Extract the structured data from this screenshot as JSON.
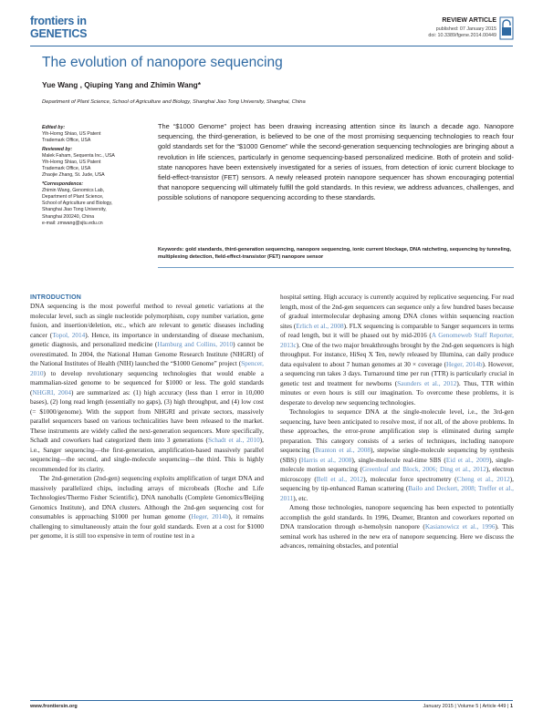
{
  "header": {
    "logo_line1": "frontiers in",
    "logo_line2": "GENETICS",
    "article_type": "REVIEW ARTICLE",
    "published": "published: 07 January 2015",
    "doi": "doi: 10.3389/fgene.2014.00449"
  },
  "title": "The evolution of nanopore sequencing",
  "authors": "Yue Wang , Qiuping Yang and Zhimin Wang*",
  "affiliation": "Department of Plant Science, School of Agriculture and Biology, Shanghai Jiao Tong University, Shanghai, China",
  "sidebar": {
    "edited_by_heading": "Edited by:",
    "edited_by": [
      "Yih-Horng Shiao, US Patent",
      "Trademark Office, USA"
    ],
    "reviewed_by_heading": "Reviewed by:",
    "reviewed_by": [
      "Malek Faham, Sequenta Inc., USA",
      "Yih-Horng Shiao, US Patent",
      "Trademark Office, USA",
      "Zhaojie Zhang, St. Jude, USA"
    ],
    "correspondence_heading": "*Correspondence:",
    "correspondence": [
      "Zhimin Wang, Genomics Lab,",
      "Department of Plant Science,",
      "School of Agriculture and Biology,",
      "Shanghai Jiao Tong University,",
      "Shanghai 200240, China",
      "e-mail: zmwang@sjtu.edu.cn"
    ]
  },
  "abstract": "The “$1000 Genome” project has been drawing increasing attention since its launch a decade ago. Nanopore sequencing, the third-generation, is believed to be one of the most promising sequencing technologies to reach four gold standards set for the “$1000 Genome” while the second-generation sequencing technologies are bringing about a revolution in life sciences, particularly in genome sequencing-based personalized medicine. Both of protein and solid-state nanopores have been extensively investigated for a series of issues, from detection of ionic current blockage to field-effect-transistor (FET) sensors. A newly released protein nanopore sequencer has shown encouraging potential that nanopore sequencing will ultimately fulfill the gold standards. In this review, we address advances, challenges, and possible solutions of nanopore sequencing according to these standards.",
  "keywords": {
    "label": "Keywords:",
    "text": "gold standards, third-generation sequencing, nanopore sequencing, ionic current blockage, DNA ratcheting, sequencing by tunneling, multiplexing detection, field-effect-transistor (FET) nanopore sensor"
  },
  "body": {
    "introduction_heading": "INTRODUCTION",
    "left": [
      {
        "segments": [
          {
            "t": "DNA sequencing is the most powerful method to reveal genetic variations at the molecular level, such as single nucleotide polymorphism, copy number variation, gene fusion, and insertion/deletion, etc., which are relevant to genetic diseases including cancer ("
          },
          {
            "c": "Topol, 2014"
          },
          {
            "t": "). Hence, its importance in understanding of disease mechanism, genetic diagnosis, and personalized medicine ("
          },
          {
            "c": "Hamburg and Collins, 2010"
          },
          {
            "t": ") cannot be overestimated. In 2004, the National Human Genome Research Institute (NHGRI) of the National Institutes of Health (NIH) launched the “$1000 Genome” project ("
          },
          {
            "c": "Spencer, 2010"
          },
          {
            "t": ") to develop revolutionary sequencing technologies that would enable a mammalian-sized genome to be sequenced for $1000 or less. The gold standards ("
          },
          {
            "c": "NHGRI, 2004"
          },
          {
            "t": ") are summarized as: (1) high accuracy (less than 1 error in 10,000 bases), (2) long read length (essentially no gaps), (3) high throughput, and (4) low cost (= $1000/genome). With the support from NHGRI and private sectors, massively parallel sequencers based on various technicalities have been released to the market. These instruments are widely called the next-generation sequencers. More specifically, Schadt and coworkers had categorized them into 3 generations ("
          },
          {
            "c": "Schadt et al., 2010"
          },
          {
            "t": "), i.e., Sanger sequencing—the first-generation, amplification-based massively parallel sequencing—the second, and single-molecule sequencing—the third. This is highly recommended for its clarity."
          }
        ]
      },
      {
        "segments": [
          {
            "t": "The 2nd-generation (2nd-gen) sequencing exploits amplification of target DNA and massively parallelized chips, including arrays of microbeads (Roche and Life Technologies/Thermo Fisher Scientific), DNA nanoballs (Complete Genomics/Beijing Genomics Institute), and DNA clusters. Although the 2nd-gen sequencing cost for consumables is approaching $1000 per human genome ("
          },
          {
            "c": "Heger, 2014b"
          },
          {
            "t": "), it remains challenging to simultaneously attain the four gold standards. Even at a cost for $1000 per genome, it is still too expensive in term of routine test in a"
          }
        ]
      }
    ],
    "right": [
      {
        "segments": [
          {
            "t": "hospital setting. High accuracy is currently acquired by replicative sequencing. For read length, most of the 2nd-gen sequencers can sequence only a few hundred bases because of gradual intermolecular dephasing among DNA clones within sequencing reaction sites ("
          },
          {
            "c": "Erlich et al., 2008"
          },
          {
            "t": "). FLX sequencing is comparable to Sanger sequencers in terms of read length, but it will be phased out by mid-2016 ("
          },
          {
            "c": "A Genomeweb Staff Reporter, 2013c"
          },
          {
            "t": "). One of the two major breakthroughs brought by the 2nd-gen sequencers is high throughput. For instance, HiSeq X Ten, newly released by Illumina, can daily produce data equivalent to about 7 human genomes at 30 × coverage ("
          },
          {
            "c": "Heger, 2014b"
          },
          {
            "t": "). However, a sequencing run takes 3 days. Turnaround time per run (TTR) is particularly crucial in genetic test and treatment for newborns ("
          },
          {
            "c": "Saunders et al., 2012"
          },
          {
            "t": "). Thus, TTR within minutes or even hours is still our imagination. To overcome these problems, it is desperate to develop new sequencing technologies."
          }
        ]
      },
      {
        "segments": [
          {
            "t": "Technologies to sequence DNA at the single-molecule level, i.e., the 3rd-gen sequencing, have been anticipated to resolve most, if not all, of the above problems. In these approaches, the error-prone amplification step is eliminated during sample preparation. This category consists of a series of techniques, including nanopore sequencing ("
          },
          {
            "c": "Branton et al., 2008"
          },
          {
            "t": "), stepwise single-molecule sequencing by synthesis (SBS) ("
          },
          {
            "c": "Harris et al., 2008"
          },
          {
            "t": "), single-molecule real-time SBS ("
          },
          {
            "c": "Eid et al., 2009"
          },
          {
            "t": "), single-molecule motion sequencing ("
          },
          {
            "c": "Greenleaf and Block, 2006; Ding et al., 2012"
          },
          {
            "t": "), electron microscopy ("
          },
          {
            "c": "Bell et al., 2012"
          },
          {
            "t": "), molecular force spectrometry ("
          },
          {
            "c": "Cheng et al., 2012"
          },
          {
            "t": "), sequencing by tip-enhanced Raman scattering ("
          },
          {
            "c": "Bailo and Deckert, 2008; Treffer et al., 2011"
          },
          {
            "t": "), etc."
          }
        ]
      },
      {
        "segments": [
          {
            "t": "Among those technologies, nanopore sequencing has been expected to potentially accomplish the gold standards. In 1996, Deamer, Branton and coworkers reported on DNA translocation through α-hemolysin nanopore ("
          },
          {
            "c": "Kasianowicz et al., 1996"
          },
          {
            "t": "). This seminal work has ushered in the new era of nanopore sequencing. Here we discuss the advances, remaining obstacles, and potential"
          }
        ]
      }
    ]
  },
  "footer": {
    "website": "www.frontiersin.org",
    "citation": "January 2015 | Volume 5 | Article 449 |",
    "page": "1"
  },
  "colors": {
    "brand_blue": "#2f6aa3",
    "link_blue": "#5b8bc0",
    "text": "#231f20"
  }
}
